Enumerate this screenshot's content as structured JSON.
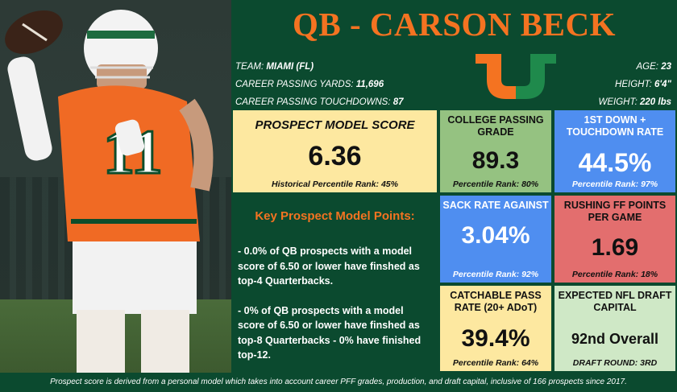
{
  "title": "QB - CARSON BECK",
  "player": {
    "team_label": "TEAM: ",
    "team": "MIAMI (FL)",
    "yards_label": "CAREER PASSING YARDS: ",
    "yards": "11,696",
    "td_label": "CAREER PASSING TOUCHDOWNS: ",
    "td": "87",
    "age_label": "AGE: ",
    "age": "23",
    "height_label": "HEIGHT: ",
    "height": "6'4\"",
    "weight_label": "WEIGHT: ",
    "weight": "220 lbs",
    "jersey_number": "11"
  },
  "score": {
    "label": "PROSPECT MODEL SCORE",
    "value": "6.36",
    "rank": "Historical Percentile Rank: 45%"
  },
  "key_points": {
    "heading": "Key Prospect Model Points:",
    "point1": "- 0.0% of QB prospects with a model score of 6.50 or lower have finshed as top-4 Quarterbacks.",
    "point2": "- 0% of QB prospects with a model score of 6.50 or lower have finshed as top-8 Quarterbacks - 0% have finished top-12."
  },
  "metrics": {
    "passing_grade": {
      "label": "COLLEGE PASSING GRADE",
      "value": "89.3",
      "rank": "Percentile Rank: 80%"
    },
    "first_down_td": {
      "label": "1ST DOWN + TOUCHDOWN RATE",
      "value": "44.5%",
      "rank": "Percentile Rank: 97%"
    },
    "sack_rate": {
      "label": "SACK RATE AGAINST",
      "value": "3.04%",
      "rank": "Percentile Rank: 92%"
    },
    "rushing_ff": {
      "label": "RUSHING FF POINTS PER GAME",
      "value": "1.69",
      "rank": "Percentile Rank: 18%"
    },
    "catchable": {
      "label": "CATCHABLE PASS RATE (20+ ADoT)",
      "value": "39.4%",
      "rank": "Percentile Rank: 64%"
    },
    "draft": {
      "label": "EXPECTED NFL DRAFT CAPITAL",
      "value": "92nd Overall",
      "rank": "DRAFT ROUND: 3RD"
    }
  },
  "footer": "Prospect score is derived from a personal model which takes into account career PFF grades, production, and draft capital, inclusive of 166 prospects since 2017.",
  "colors": {
    "green": "#0b4a2f",
    "orange": "#f47321"
  }
}
